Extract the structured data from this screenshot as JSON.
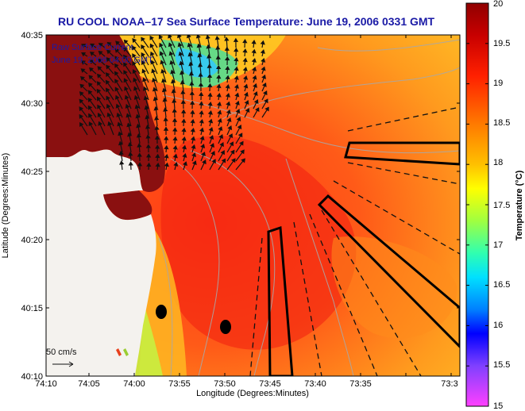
{
  "title": "RU COOL  NOAA–17  Sea Surface Temperature:  June 19, 2006 0331 GMT",
  "overlay": {
    "line1": "Raw Surface Current",
    "line2": "June 19, 2006 04:00 GMT"
  },
  "scale_label": "50 cm/s",
  "axes": {
    "xlabel": "Longitude (Degrees:Minutes)",
    "ylabel": "Latitude (Degrees:Minutes)",
    "x_ticks": [
      "74:10",
      "74:05",
      "74:00",
      "73:55",
      "73:50",
      "73:45",
      "73:40",
      "73:35",
      "73:3"
    ],
    "y_ticks": [
      "40:35",
      "40:30",
      "40:25",
      "40:20",
      "40:15",
      "40:10"
    ]
  },
  "colorbar": {
    "label": "Temperature (°C)",
    "ticks": [
      "20",
      "19.5",
      "19",
      "18.5",
      "18",
      "17.5",
      "17",
      "16.5",
      "16",
      "15.5",
      "15"
    ],
    "min": 15,
    "max": 20
  },
  "colors": {
    "title": "#1a1aa6",
    "land": "#8a1010",
    "beach": "#f2eee4"
  }
}
